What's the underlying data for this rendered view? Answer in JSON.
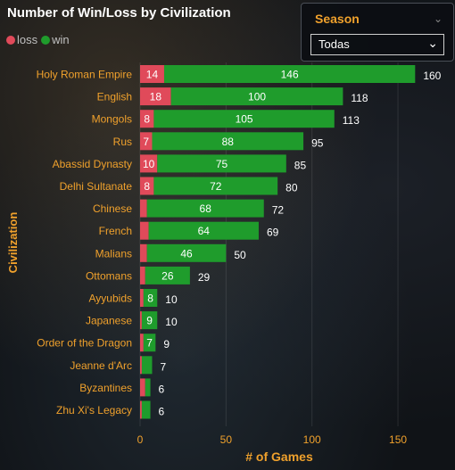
{
  "title": "Number of Win/Loss by Civilization",
  "legend": [
    {
      "label": "loss",
      "color": "#e04a5a"
    },
    {
      "label": "win",
      "color": "#1f9c2c"
    }
  ],
  "slicer": {
    "title": "Season",
    "value": "Todas"
  },
  "chart_data": {
    "type": "bar",
    "orientation": "horizontal",
    "stacked": true,
    "title": "Number of Win/Loss by Civilization",
    "xlabel": "# of Games",
    "ylabel": "Civilization",
    "xlim": [
      0,
      160
    ],
    "xticks": [
      0,
      50,
      100,
      150
    ],
    "categories": [
      "Holy Roman Empire",
      "English",
      "Mongols",
      "Rus",
      "Abassid Dynasty",
      "Delhi Sultanate",
      "Chinese",
      "French",
      "Malians",
      "Ottomans",
      "Ayyubids",
      "Japanese",
      "Order of the Dragon",
      "Jeanne d'Arc",
      "Byzantines",
      "Zhu Xi's Legacy"
    ],
    "series": [
      {
        "name": "loss",
        "color": "#e04a5a",
        "values": [
          14,
          18,
          8,
          7,
          10,
          8,
          4,
          5,
          4,
          3,
          2,
          1,
          2,
          1,
          3,
          1
        ]
      },
      {
        "name": "win",
        "color": "#1f9c2c",
        "values": [
          146,
          100,
          105,
          88,
          75,
          72,
          68,
          64,
          46,
          26,
          8,
          9,
          7,
          6,
          3,
          5
        ]
      }
    ],
    "totals": [
      160,
      118,
      113,
      95,
      85,
      80,
      72,
      69,
      50,
      29,
      10,
      10,
      9,
      7,
      6,
      6
    ]
  }
}
